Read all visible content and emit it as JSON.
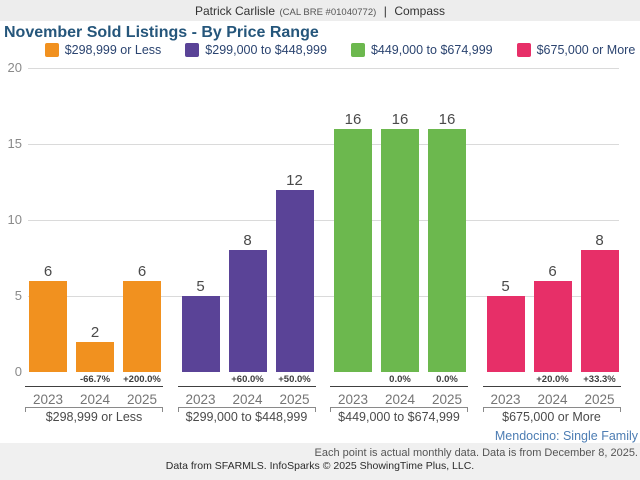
{
  "header": {
    "name": "Patrick Carlisle",
    "license": "(CAL BRE #01040772)",
    "separator": "|",
    "brand": "Compass"
  },
  "title": "November Sold Listings - By Price Range",
  "legend": [
    {
      "label": "$298,999 or Less",
      "color": "#F1911F"
    },
    {
      "label": "$299,000 to $448,999",
      "color": "#5A4397"
    },
    {
      "label": "$449,000 to $674,999",
      "color": "#6CB84E"
    },
    {
      "label": "$675,000 or More",
      "color": "#E72F68"
    }
  ],
  "chart_data": {
    "type": "bar",
    "title": "November Sold Listings - By Price Range",
    "categories": [
      "2023",
      "2024",
      "2025"
    ],
    "ylim": [
      0,
      20
    ],
    "yticks": [
      0,
      5,
      10,
      15,
      20
    ],
    "grid": "horizontal",
    "legend_position": "top",
    "groups": [
      {
        "label": "$298,999 or Less",
        "color": "#F1911F",
        "values": [
          6,
          2,
          6
        ],
        "pct_change": [
          "",
          "-66.7%",
          "+200.0%"
        ]
      },
      {
        "label": "$299,000 to $448,999",
        "color": "#5A4397",
        "values": [
          5,
          8,
          12
        ],
        "pct_change": [
          "",
          "+60.0%",
          "+50.0%"
        ]
      },
      {
        "label": "$449,000 to $674,999",
        "color": "#6CB84E",
        "values": [
          16,
          16,
          16
        ],
        "pct_change": [
          "",
          "0.0%",
          "0.0%"
        ]
      },
      {
        "label": "$675,000 or More",
        "color": "#E72F68",
        "values": [
          5,
          6,
          8
        ],
        "pct_change": [
          "",
          "+20.0%",
          "+33.3%"
        ]
      }
    ]
  },
  "footer": {
    "market": "Mendocino: Single Family",
    "note": "Each point is actual monthly data. Data is from December 8, 2025.",
    "attribution": "Data from SFARMLS. InfoSparks © 2025 ShowingTime Plus, LLC."
  }
}
